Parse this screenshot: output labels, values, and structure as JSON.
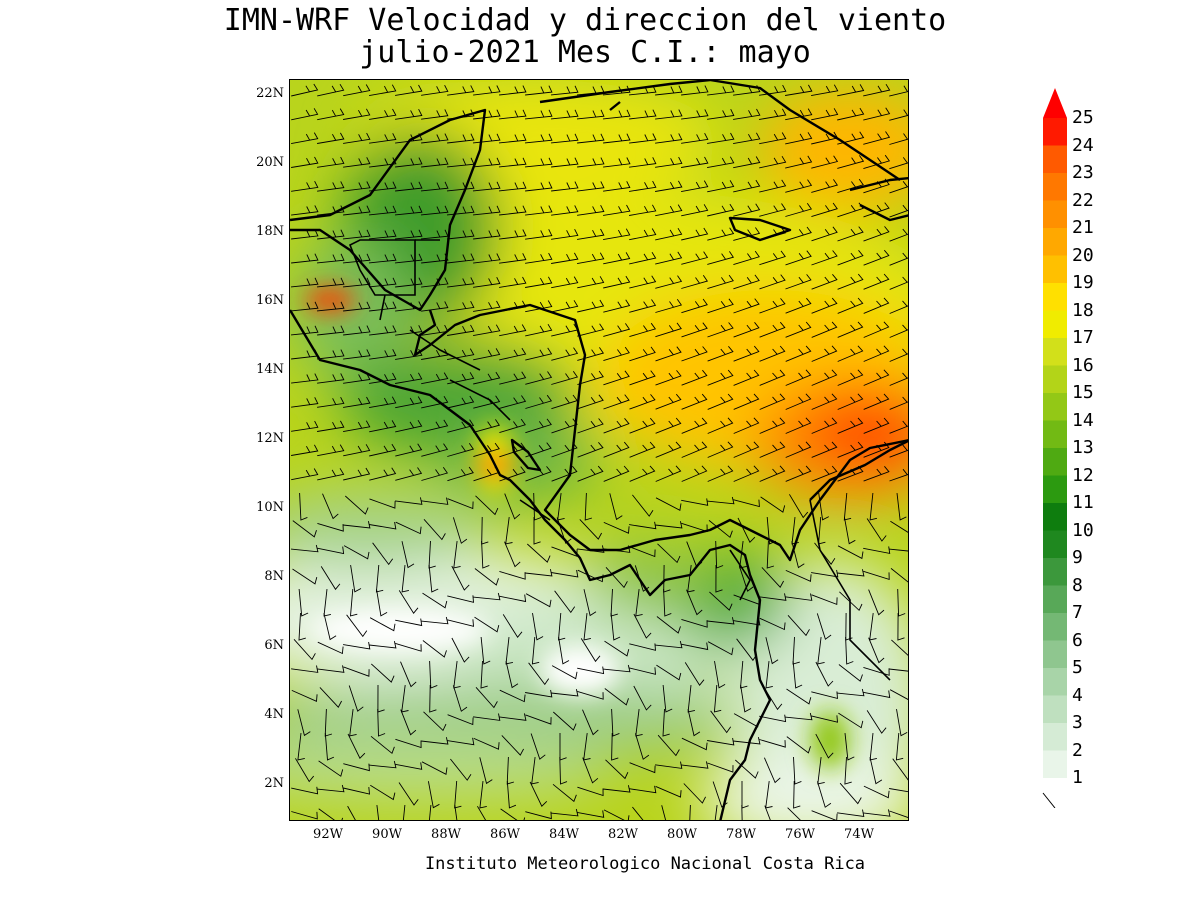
{
  "title": {
    "line1": "IMN-WRF Velocidad y direccion del viento",
    "line2": "julio-2021 Mes C.I.: mayo"
  },
  "credit": "Instituto Meteorologico Nacional Costa Rica",
  "axes": {
    "latitudes": [
      "22N",
      "20N",
      "18N",
      "16N",
      "14N",
      "12N",
      "10N",
      "8N",
      "6N",
      "4N",
      "2N"
    ],
    "longitudes": [
      "92W",
      "90W",
      "88W",
      "86W",
      "84W",
      "82W",
      "80W",
      "78W",
      "76W",
      "74W"
    ],
    "lat_range": [
      1,
      22.4
    ],
    "lon_range": [
      -93.3,
      -72.5
    ]
  },
  "colorbar": {
    "levels": [
      "1",
      "2",
      "3",
      "4",
      "5",
      "6",
      "7",
      "8",
      "9",
      "10",
      "11",
      "12",
      "13",
      "14",
      "15",
      "16",
      "17",
      "18",
      "19",
      "20",
      "21",
      "22",
      "23",
      "24",
      "25"
    ],
    "colors": [
      "#e9f5e9",
      "#d5ebd5",
      "#bfe0bf",
      "#a8d4a8",
      "#8fc68f",
      "#74b874",
      "#58a858",
      "#3c983c",
      "#1f881f",
      "#0e7d0e",
      "#2c9a10",
      "#4faa12",
      "#72ba14",
      "#93c816",
      "#b3d418",
      "#d2e01a",
      "#f0ec00",
      "#ffe000",
      "#ffc000",
      "#ffa800",
      "#ff9000",
      "#ff7800",
      "#ff5a00",
      "#ff3c00",
      "#ff1a00"
    ],
    "over_color": "#ff0000",
    "units_hint": "wind barb"
  },
  "map": {
    "region": "Central America, Caribbean and Eastern Pacific",
    "features": [
      "wind-speed-shading",
      "wind-barbs",
      "coastlines",
      "country-borders"
    ]
  }
}
